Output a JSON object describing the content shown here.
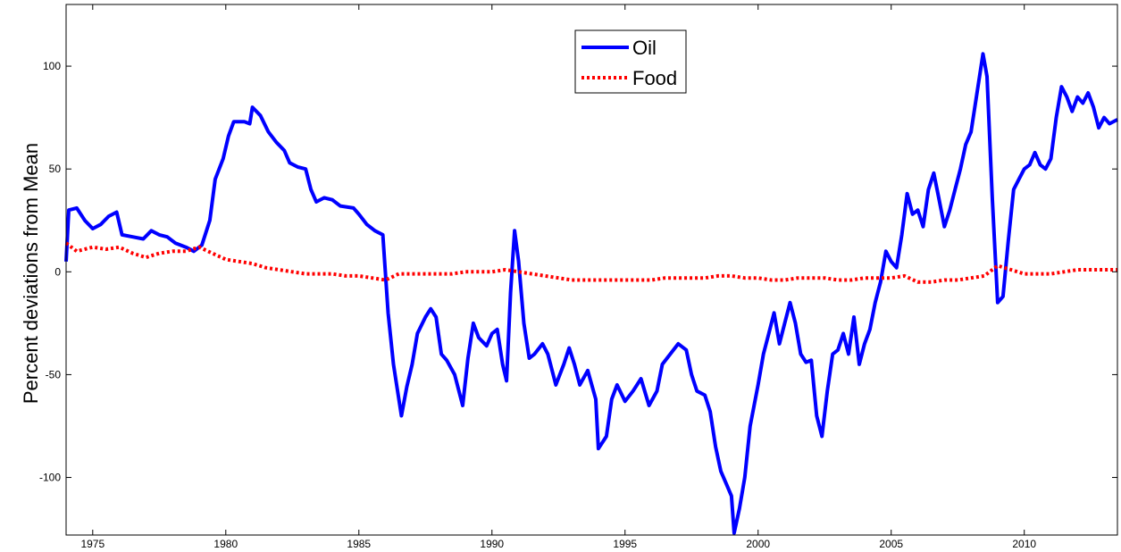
{
  "chart_data": {
    "type": "line",
    "title": "",
    "xlabel": "",
    "ylabel": "Percent deviations from Mean",
    "xlim": [
      1974.0,
      2013.5
    ],
    "ylim": [
      -128,
      130
    ],
    "x_ticks": [
      1975,
      1980,
      1985,
      1990,
      1995,
      2000,
      2005,
      2010
    ],
    "x_tick_labels": [
      "1975",
      "1980",
      "1985",
      "1990",
      "1995",
      "2000",
      "2005",
      "2010"
    ],
    "y_ticks": [
      -100,
      -50,
      0,
      50,
      100
    ],
    "y_tick_labels": [
      "-100",
      "-50",
      "0",
      "50",
      "100"
    ],
    "grid": false,
    "legend_position": "top-center",
    "series": [
      {
        "name": "Oil",
        "color": "#0000ff",
        "style": "solid",
        "points": [
          [
            1974.0,
            5
          ],
          [
            1974.1,
            30
          ],
          [
            1974.4,
            31
          ],
          [
            1974.7,
            25
          ],
          [
            1975.0,
            21
          ],
          [
            1975.3,
            23
          ],
          [
            1975.6,
            27
          ],
          [
            1975.9,
            29
          ],
          [
            1976.1,
            18
          ],
          [
            1976.5,
            17
          ],
          [
            1976.9,
            16
          ],
          [
            1977.2,
            20
          ],
          [
            1977.5,
            18
          ],
          [
            1977.8,
            17
          ],
          [
            1978.1,
            14
          ],
          [
            1978.5,
            12
          ],
          [
            1978.8,
            10
          ],
          [
            1979.1,
            13
          ],
          [
            1979.4,
            25
          ],
          [
            1979.6,
            45
          ],
          [
            1979.9,
            55
          ],
          [
            1980.1,
            66
          ],
          [
            1980.3,
            73
          ],
          [
            1980.7,
            73
          ],
          [
            1980.9,
            72
          ],
          [
            1981.0,
            80
          ],
          [
            1981.3,
            76
          ],
          [
            1981.6,
            68
          ],
          [
            1981.9,
            63
          ],
          [
            1982.2,
            59
          ],
          [
            1982.4,
            53
          ],
          [
            1982.7,
            51
          ],
          [
            1983.0,
            50
          ],
          [
            1983.2,
            40
          ],
          [
            1983.4,
            34
          ],
          [
            1983.7,
            36
          ],
          [
            1984.0,
            35
          ],
          [
            1984.3,
            32
          ],
          [
            1984.8,
            31
          ],
          [
            1985.0,
            28
          ],
          [
            1985.3,
            23
          ],
          [
            1985.6,
            20
          ],
          [
            1985.9,
            18
          ],
          [
            1986.1,
            -20
          ],
          [
            1986.3,
            -45
          ],
          [
            1986.6,
            -70
          ],
          [
            1986.8,
            -56
          ],
          [
            1987.0,
            -45
          ],
          [
            1987.2,
            -30
          ],
          [
            1987.5,
            -22
          ],
          [
            1987.7,
            -18
          ],
          [
            1987.9,
            -22
          ],
          [
            1988.1,
            -40
          ],
          [
            1988.3,
            -43
          ],
          [
            1988.6,
            -50
          ],
          [
            1988.9,
            -65
          ],
          [
            1989.1,
            -42
          ],
          [
            1989.3,
            -25
          ],
          [
            1989.5,
            -32
          ],
          [
            1989.8,
            -36
          ],
          [
            1990.0,
            -30
          ],
          [
            1990.2,
            -28
          ],
          [
            1990.4,
            -45
          ],
          [
            1990.55,
            -53
          ],
          [
            1990.7,
            -10
          ],
          [
            1990.85,
            20
          ],
          [
            1991.0,
            5
          ],
          [
            1991.2,
            -25
          ],
          [
            1991.4,
            -42
          ],
          [
            1991.6,
            -40
          ],
          [
            1991.9,
            -35
          ],
          [
            1992.1,
            -40
          ],
          [
            1992.4,
            -55
          ],
          [
            1992.7,
            -45
          ],
          [
            1992.9,
            -37
          ],
          [
            1993.1,
            -45
          ],
          [
            1993.3,
            -55
          ],
          [
            1993.6,
            -48
          ],
          [
            1993.9,
            -62
          ],
          [
            1994.0,
            -86
          ],
          [
            1994.3,
            -80
          ],
          [
            1994.5,
            -62
          ],
          [
            1994.7,
            -55
          ],
          [
            1995.0,
            -63
          ],
          [
            1995.3,
            -58
          ],
          [
            1995.6,
            -52
          ],
          [
            1995.9,
            -65
          ],
          [
            1996.2,
            -58
          ],
          [
            1996.4,
            -45
          ],
          [
            1996.7,
            -40
          ],
          [
            1997.0,
            -35
          ],
          [
            1997.3,
            -38
          ],
          [
            1997.5,
            -50
          ],
          [
            1997.7,
            -58
          ],
          [
            1998.0,
            -60
          ],
          [
            1998.2,
            -68
          ],
          [
            1998.4,
            -85
          ],
          [
            1998.6,
            -97
          ],
          [
            1998.8,
            -103
          ],
          [
            1999.0,
            -109
          ],
          [
            1999.1,
            -127
          ],
          [
            1999.3,
            -115
          ],
          [
            1999.5,
            -100
          ],
          [
            1999.7,
            -75
          ],
          [
            2000.0,
            -55
          ],
          [
            2000.2,
            -40
          ],
          [
            2000.4,
            -30
          ],
          [
            2000.6,
            -20
          ],
          [
            2000.8,
            -35
          ],
          [
            2001.0,
            -25
          ],
          [
            2001.2,
            -15
          ],
          [
            2001.4,
            -25
          ],
          [
            2001.6,
            -40
          ],
          [
            2001.8,
            -44
          ],
          [
            2002.0,
            -43
          ],
          [
            2002.2,
            -70
          ],
          [
            2002.4,
            -80
          ],
          [
            2002.6,
            -58
          ],
          [
            2002.8,
            -40
          ],
          [
            2003.0,
            -38
          ],
          [
            2003.2,
            -30
          ],
          [
            2003.4,
            -40
          ],
          [
            2003.6,
            -22
          ],
          [
            2003.8,
            -45
          ],
          [
            2004.0,
            -35
          ],
          [
            2004.2,
            -28
          ],
          [
            2004.4,
            -15
          ],
          [
            2004.6,
            -5
          ],
          [
            2004.8,
            10
          ],
          [
            2005.0,
            5
          ],
          [
            2005.2,
            2
          ],
          [
            2005.4,
            18
          ],
          [
            2005.6,
            38
          ],
          [
            2005.8,
            28
          ],
          [
            2006.0,
            30
          ],
          [
            2006.2,
            22
          ],
          [
            2006.4,
            40
          ],
          [
            2006.6,
            48
          ],
          [
            2006.8,
            35
          ],
          [
            2007.0,
            22
          ],
          [
            2007.2,
            30
          ],
          [
            2007.4,
            40
          ],
          [
            2007.6,
            50
          ],
          [
            2007.8,
            62
          ],
          [
            2008.0,
            68
          ],
          [
            2008.2,
            85
          ],
          [
            2008.45,
            106
          ],
          [
            2008.6,
            95
          ],
          [
            2008.8,
            35
          ],
          [
            2009.0,
            -15
          ],
          [
            2009.2,
            -12
          ],
          [
            2009.4,
            15
          ],
          [
            2009.6,
            40
          ],
          [
            2009.8,
            45
          ],
          [
            2010.0,
            50
          ],
          [
            2010.2,
            52
          ],
          [
            2010.4,
            58
          ],
          [
            2010.6,
            52
          ],
          [
            2010.8,
            50
          ],
          [
            2011.0,
            55
          ],
          [
            2011.2,
            75
          ],
          [
            2011.4,
            90
          ],
          [
            2011.6,
            85
          ],
          [
            2011.8,
            78
          ],
          [
            2012.0,
            85
          ],
          [
            2012.2,
            82
          ],
          [
            2012.4,
            87
          ],
          [
            2012.6,
            80
          ],
          [
            2012.8,
            70
          ],
          [
            2013.0,
            75
          ],
          [
            2013.2,
            72
          ],
          [
            2013.5,
            74
          ]
        ]
      },
      {
        "name": "Food",
        "color": "#ff0000",
        "style": "dotted",
        "points": [
          [
            1974.0,
            14
          ],
          [
            1974.4,
            10
          ],
          [
            1975.0,
            12
          ],
          [
            1975.5,
            11
          ],
          [
            1976.0,
            12
          ],
          [
            1976.5,
            9
          ],
          [
            1977.0,
            7
          ],
          [
            1977.5,
            9
          ],
          [
            1978.0,
            10
          ],
          [
            1978.5,
            10
          ],
          [
            1979.0,
            12
          ],
          [
            1979.5,
            9
          ],
          [
            1980.0,
            6
          ],
          [
            1980.5,
            5
          ],
          [
            1981.0,
            4
          ],
          [
            1981.5,
            2
          ],
          [
            1982.0,
            1
          ],
          [
            1982.5,
            0
          ],
          [
            1983.0,
            -1
          ],
          [
            1983.5,
            -1
          ],
          [
            1984.0,
            -1
          ],
          [
            1984.5,
            -2
          ],
          [
            1985.0,
            -2
          ],
          [
            1985.5,
            -3
          ],
          [
            1986.0,
            -4
          ],
          [
            1986.5,
            -1
          ],
          [
            1987.0,
            -1
          ],
          [
            1987.5,
            -1
          ],
          [
            1988.0,
            -1
          ],
          [
            1988.5,
            -1
          ],
          [
            1989.0,
            0
          ],
          [
            1989.5,
            0
          ],
          [
            1990.0,
            0
          ],
          [
            1990.5,
            1
          ],
          [
            1991.0,
            0
          ],
          [
            1991.5,
            -1
          ],
          [
            1992.0,
            -2
          ],
          [
            1992.5,
            -3
          ],
          [
            1993.0,
            -4
          ],
          [
            1993.5,
            -4
          ],
          [
            1994.0,
            -4
          ],
          [
            1994.5,
            -4
          ],
          [
            1995.0,
            -4
          ],
          [
            1995.5,
            -4
          ],
          [
            1996.0,
            -4
          ],
          [
            1996.5,
            -3
          ],
          [
            1997.0,
            -3
          ],
          [
            1997.5,
            -3
          ],
          [
            1998.0,
            -3
          ],
          [
            1998.5,
            -2
          ],
          [
            1999.0,
            -2
          ],
          [
            1999.5,
            -3
          ],
          [
            2000.0,
            -3
          ],
          [
            2000.5,
            -4
          ],
          [
            2001.0,
            -4
          ],
          [
            2001.5,
            -3
          ],
          [
            2002.0,
            -3
          ],
          [
            2002.5,
            -3
          ],
          [
            2003.0,
            -4
          ],
          [
            2003.5,
            -4
          ],
          [
            2004.0,
            -3
          ],
          [
            2004.5,
            -3
          ],
          [
            2005.0,
            -3
          ],
          [
            2005.5,
            -2
          ],
          [
            2006.0,
            -5
          ],
          [
            2006.5,
            -5
          ],
          [
            2007.0,
            -4
          ],
          [
            2007.5,
            -4
          ],
          [
            2008.0,
            -3
          ],
          [
            2008.5,
            -2
          ],
          [
            2009.0,
            3
          ],
          [
            2009.5,
            1
          ],
          [
            2010.0,
            -1
          ],
          [
            2010.5,
            -1
          ],
          [
            2011.0,
            -1
          ],
          [
            2011.5,
            0
          ],
          [
            2012.0,
            1
          ],
          [
            2012.5,
            1
          ],
          [
            2013.0,
            1
          ],
          [
            2013.5,
            1
          ]
        ]
      }
    ]
  }
}
